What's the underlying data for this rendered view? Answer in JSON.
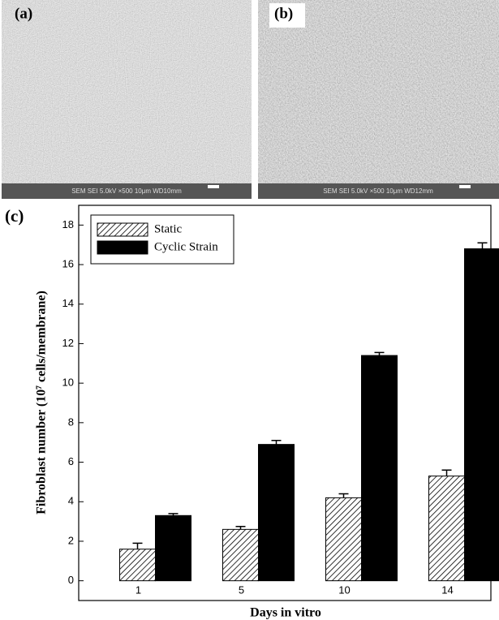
{
  "panels": [
    {
      "label": "(a)",
      "info": "SEM SEI 5.0kV ×500 10μm WD10mm"
    },
    {
      "label": "(b)",
      "info": "SEM SEI 5.0kV ×500 10μm WD12mm"
    }
  ],
  "chart_data": {
    "type": "bar",
    "panel_label": "(c)",
    "x_label": "Days in vitro",
    "y_label": "Fibroblast number (10⁷ cells/membrane)",
    "categories": [
      "1",
      "5",
      "10",
      "14"
    ],
    "series": [
      {
        "name": "Static",
        "color": "#ffffff",
        "hatch": true,
        "values": [
          1.6,
          2.6,
          4.2,
          5.3
        ],
        "errors": [
          0.3,
          0.15,
          0.2,
          0.3
        ]
      },
      {
        "name": "Cyclic Strain",
        "color": "#000000",
        "hatch": false,
        "values": [
          3.3,
          6.9,
          11.4,
          16.8
        ],
        "errors": [
          0.1,
          0.2,
          0.15,
          0.3
        ]
      }
    ],
    "ylim": [
      -1,
      19
    ],
    "yticks": [
      0,
      2,
      4,
      6,
      8,
      10,
      12,
      14,
      16,
      18
    ],
    "legend": "upper left",
    "grid": false
  }
}
